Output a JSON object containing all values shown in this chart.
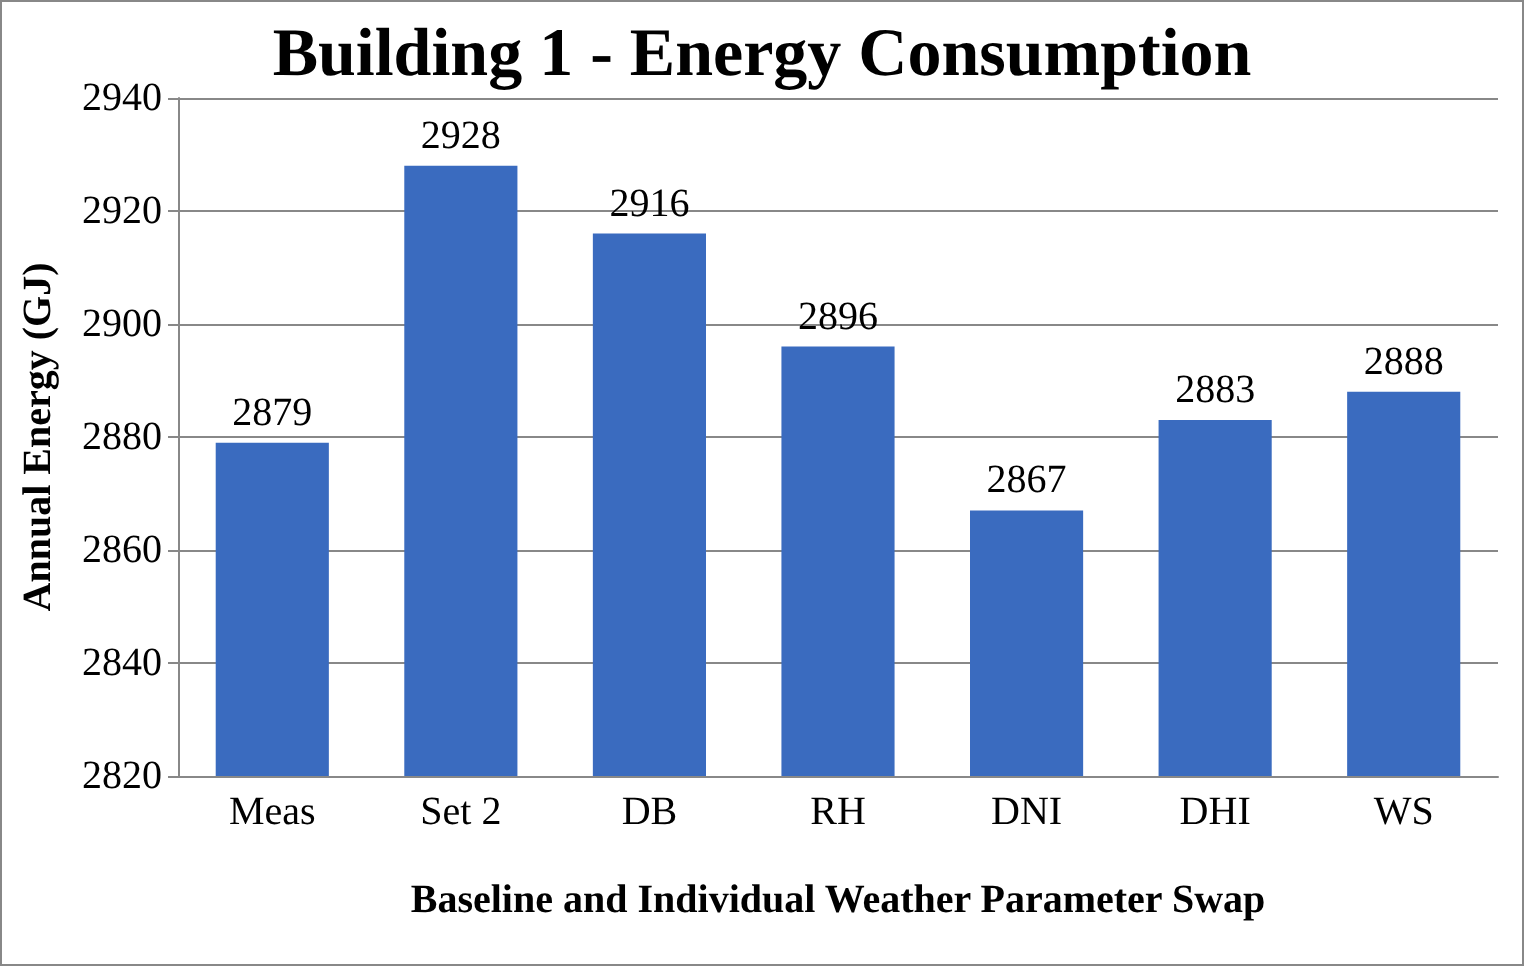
{
  "chart_data": {
    "type": "bar",
    "title": "Building 1 - Energy Consumption",
    "xlabel": "Baseline and Individual Weather Parameter Swap",
    "ylabel": "Annual Energy (GJ)",
    "categories": [
      "Meas",
      "Set 2",
      "DB",
      "RH",
      "DNI",
      "DHI",
      "WS"
    ],
    "values": [
      2879,
      2928,
      2916,
      2896,
      2867,
      2883,
      2888
    ],
    "color": "#3a6bbf",
    "ylim": [
      2820,
      2940
    ],
    "yticks": [
      2820,
      2840,
      2860,
      2880,
      2900,
      2920,
      2940
    ],
    "grid": "y",
    "data_labels": true
  }
}
